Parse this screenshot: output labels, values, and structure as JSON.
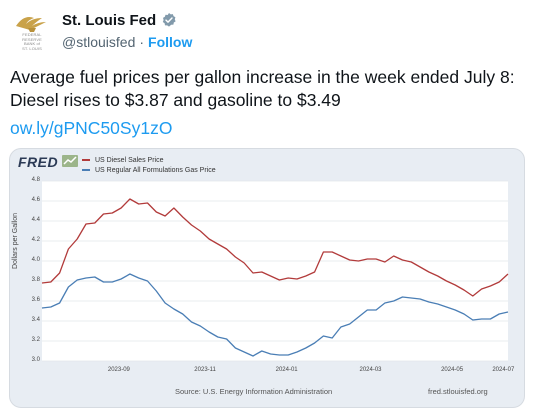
{
  "account": {
    "name": "St. Louis Fed",
    "handle": "@stlouisfed",
    "separator": "·",
    "follow_label": "Follow",
    "avatar_lines": [
      "FEDERAL",
      "RESERVE",
      "BANK of",
      "ST. LOUIS"
    ],
    "verified_color": "#829aab"
  },
  "tweet": {
    "text": "Average fuel prices per gallon increase in the week ended July 8: Diesel rises to $3.87 and gasoline to $3.49",
    "link": "ow.ly/gPNC50Sy1zO"
  },
  "chart_card": {
    "logo": "FRED",
    "source": "Source: U.S. Energy Information Administration",
    "url": "fred.stlouisfed.org"
  },
  "chart_data": {
    "type": "line",
    "ylabel": "Dollars per Gallon",
    "ylim": [
      3.0,
      4.8
    ],
    "yticks": [
      "3.0",
      "3.2",
      "3.4",
      "3.6",
      "3.8",
      "4.0",
      "4.2",
      "4.4",
      "4.6",
      "4.8"
    ],
    "xticks": [
      "2023-09",
      "2023-11",
      "2024-01",
      "2024-03",
      "2024-05",
      "2024-07"
    ],
    "grid": true,
    "legend_position": "top-left",
    "series": [
      {
        "name": "US Diesel Sales Price",
        "color": "#b23b3b",
        "values": [
          3.78,
          3.79,
          3.88,
          4.12,
          4.22,
          4.37,
          4.38,
          4.47,
          4.48,
          4.53,
          4.62,
          4.57,
          4.58,
          4.49,
          4.45,
          4.53,
          4.44,
          4.36,
          4.3,
          4.22,
          4.17,
          4.12,
          4.04,
          3.98,
          3.88,
          3.89,
          3.85,
          3.81,
          3.83,
          3.82,
          3.85,
          3.89,
          4.09,
          4.09,
          4.05,
          4.01,
          4.0,
          4.02,
          4.02,
          3.99,
          4.05,
          4.01,
          3.99,
          3.94,
          3.89,
          3.85,
          3.8,
          3.76,
          3.71,
          3.65,
          3.72,
          3.75,
          3.79,
          3.87
        ]
      },
      {
        "name": "US Regular All Formulations Gas Price",
        "color": "#4a7eb5",
        "values": [
          3.53,
          3.54,
          3.58,
          3.74,
          3.81,
          3.83,
          3.84,
          3.79,
          3.79,
          3.82,
          3.87,
          3.83,
          3.8,
          3.7,
          3.58,
          3.52,
          3.47,
          3.39,
          3.35,
          3.29,
          3.24,
          3.22,
          3.13,
          3.09,
          3.05,
          3.1,
          3.07,
          3.06,
          3.06,
          3.09,
          3.13,
          3.18,
          3.25,
          3.23,
          3.34,
          3.37,
          3.44,
          3.51,
          3.51,
          3.58,
          3.6,
          3.64,
          3.63,
          3.62,
          3.59,
          3.57,
          3.54,
          3.51,
          3.47,
          3.41,
          3.42,
          3.42,
          3.47,
          3.49
        ]
      }
    ]
  }
}
